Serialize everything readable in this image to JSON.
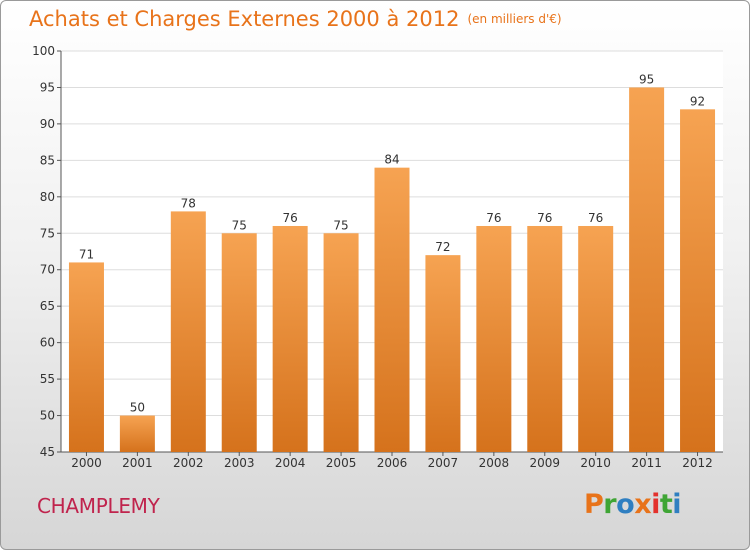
{
  "title": "Achats et Charges Externes 2000 à 2012",
  "unit": "(en milliers d'€)",
  "commune": "CHAMPLEMY",
  "logo": {
    "letters": [
      "P",
      "r",
      "o",
      "x",
      "i",
      "t",
      "i"
    ],
    "colors": [
      "#e8731a",
      "#3fa535",
      "#2f7fc1",
      "#e8731a",
      "#e3312d",
      "#3fa535",
      "#2f7fc1"
    ]
  },
  "colors": {
    "bar_light": "#f6a352",
    "bar_dark": "#d5721c",
    "title": "#e8731a",
    "commune": "#c0244d",
    "grid": "#dddddd"
  },
  "chart_data": {
    "type": "bar",
    "categories": [
      "2000",
      "2001",
      "2002",
      "2003",
      "2004",
      "2005",
      "2006",
      "2007",
      "2008",
      "2009",
      "2010",
      "2011",
      "2012"
    ],
    "values": [
      71,
      50,
      78,
      75,
      76,
      75,
      84,
      72,
      76,
      76,
      76,
      95,
      92
    ],
    "ylim": [
      45,
      100
    ],
    "yticks": [
      45,
      50,
      55,
      60,
      65,
      70,
      75,
      80,
      85,
      90,
      95,
      100
    ],
    "grid": true
  }
}
